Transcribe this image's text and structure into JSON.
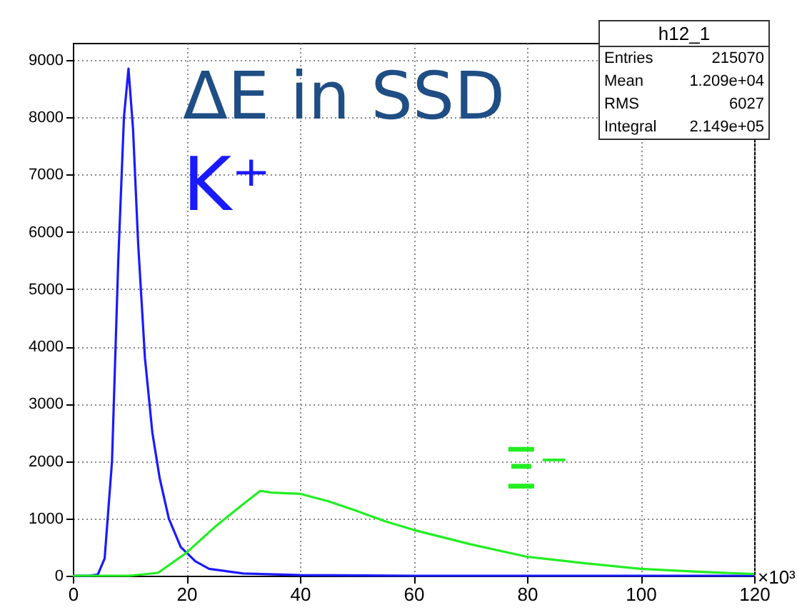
{
  "chart_data": {
    "type": "line",
    "title": "ΔE in SSD",
    "xlabel": "×10³",
    "xlim": [
      0,
      120
    ],
    "xticks": [
      0,
      20,
      40,
      60,
      80,
      100,
      120
    ],
    "ylim": [
      0,
      9300
    ],
    "yticks": [
      0,
      1000,
      2000,
      3000,
      4000,
      5000,
      6000,
      7000,
      8000,
      9000
    ],
    "grid": true,
    "marker": "none",
    "series": [
      {
        "name": "K⁺",
        "color": "#1a1aff",
        "x": [
          0,
          3,
          4.4,
          5.6,
          6.9,
          8,
          9,
          9.8,
          10.6,
          11.5,
          12.7,
          14,
          15.3,
          16.9,
          19,
          21.6,
          24,
          30,
          40,
          60,
          120
        ],
        "values": [
          0,
          0,
          20,
          300,
          2000,
          5500,
          8000,
          8850,
          7800,
          5800,
          3800,
          2500,
          1700,
          1000,
          500,
          250,
          120,
          40,
          10,
          0,
          0
        ]
      },
      {
        "name": "Ξ⁻",
        "color": "#22ee22",
        "x": [
          0,
          10,
          15,
          20,
          25,
          30,
          33,
          35,
          40,
          45,
          50,
          55,
          60,
          70,
          80,
          90,
          100,
          110,
          120
        ],
        "values": [
          0,
          0,
          50,
          400,
          850,
          1250,
          1480,
          1450,
          1430,
          1300,
          1130,
          950,
          800,
          550,
          330,
          220,
          120,
          70,
          30
        ]
      }
    ],
    "annotations": [
      "h12_1",
      "Entries",
      "215070",
      "Mean",
      "1.209e+04",
      "RMS",
      "6027",
      "Integral",
      "2.149e+05"
    ]
  }
}
